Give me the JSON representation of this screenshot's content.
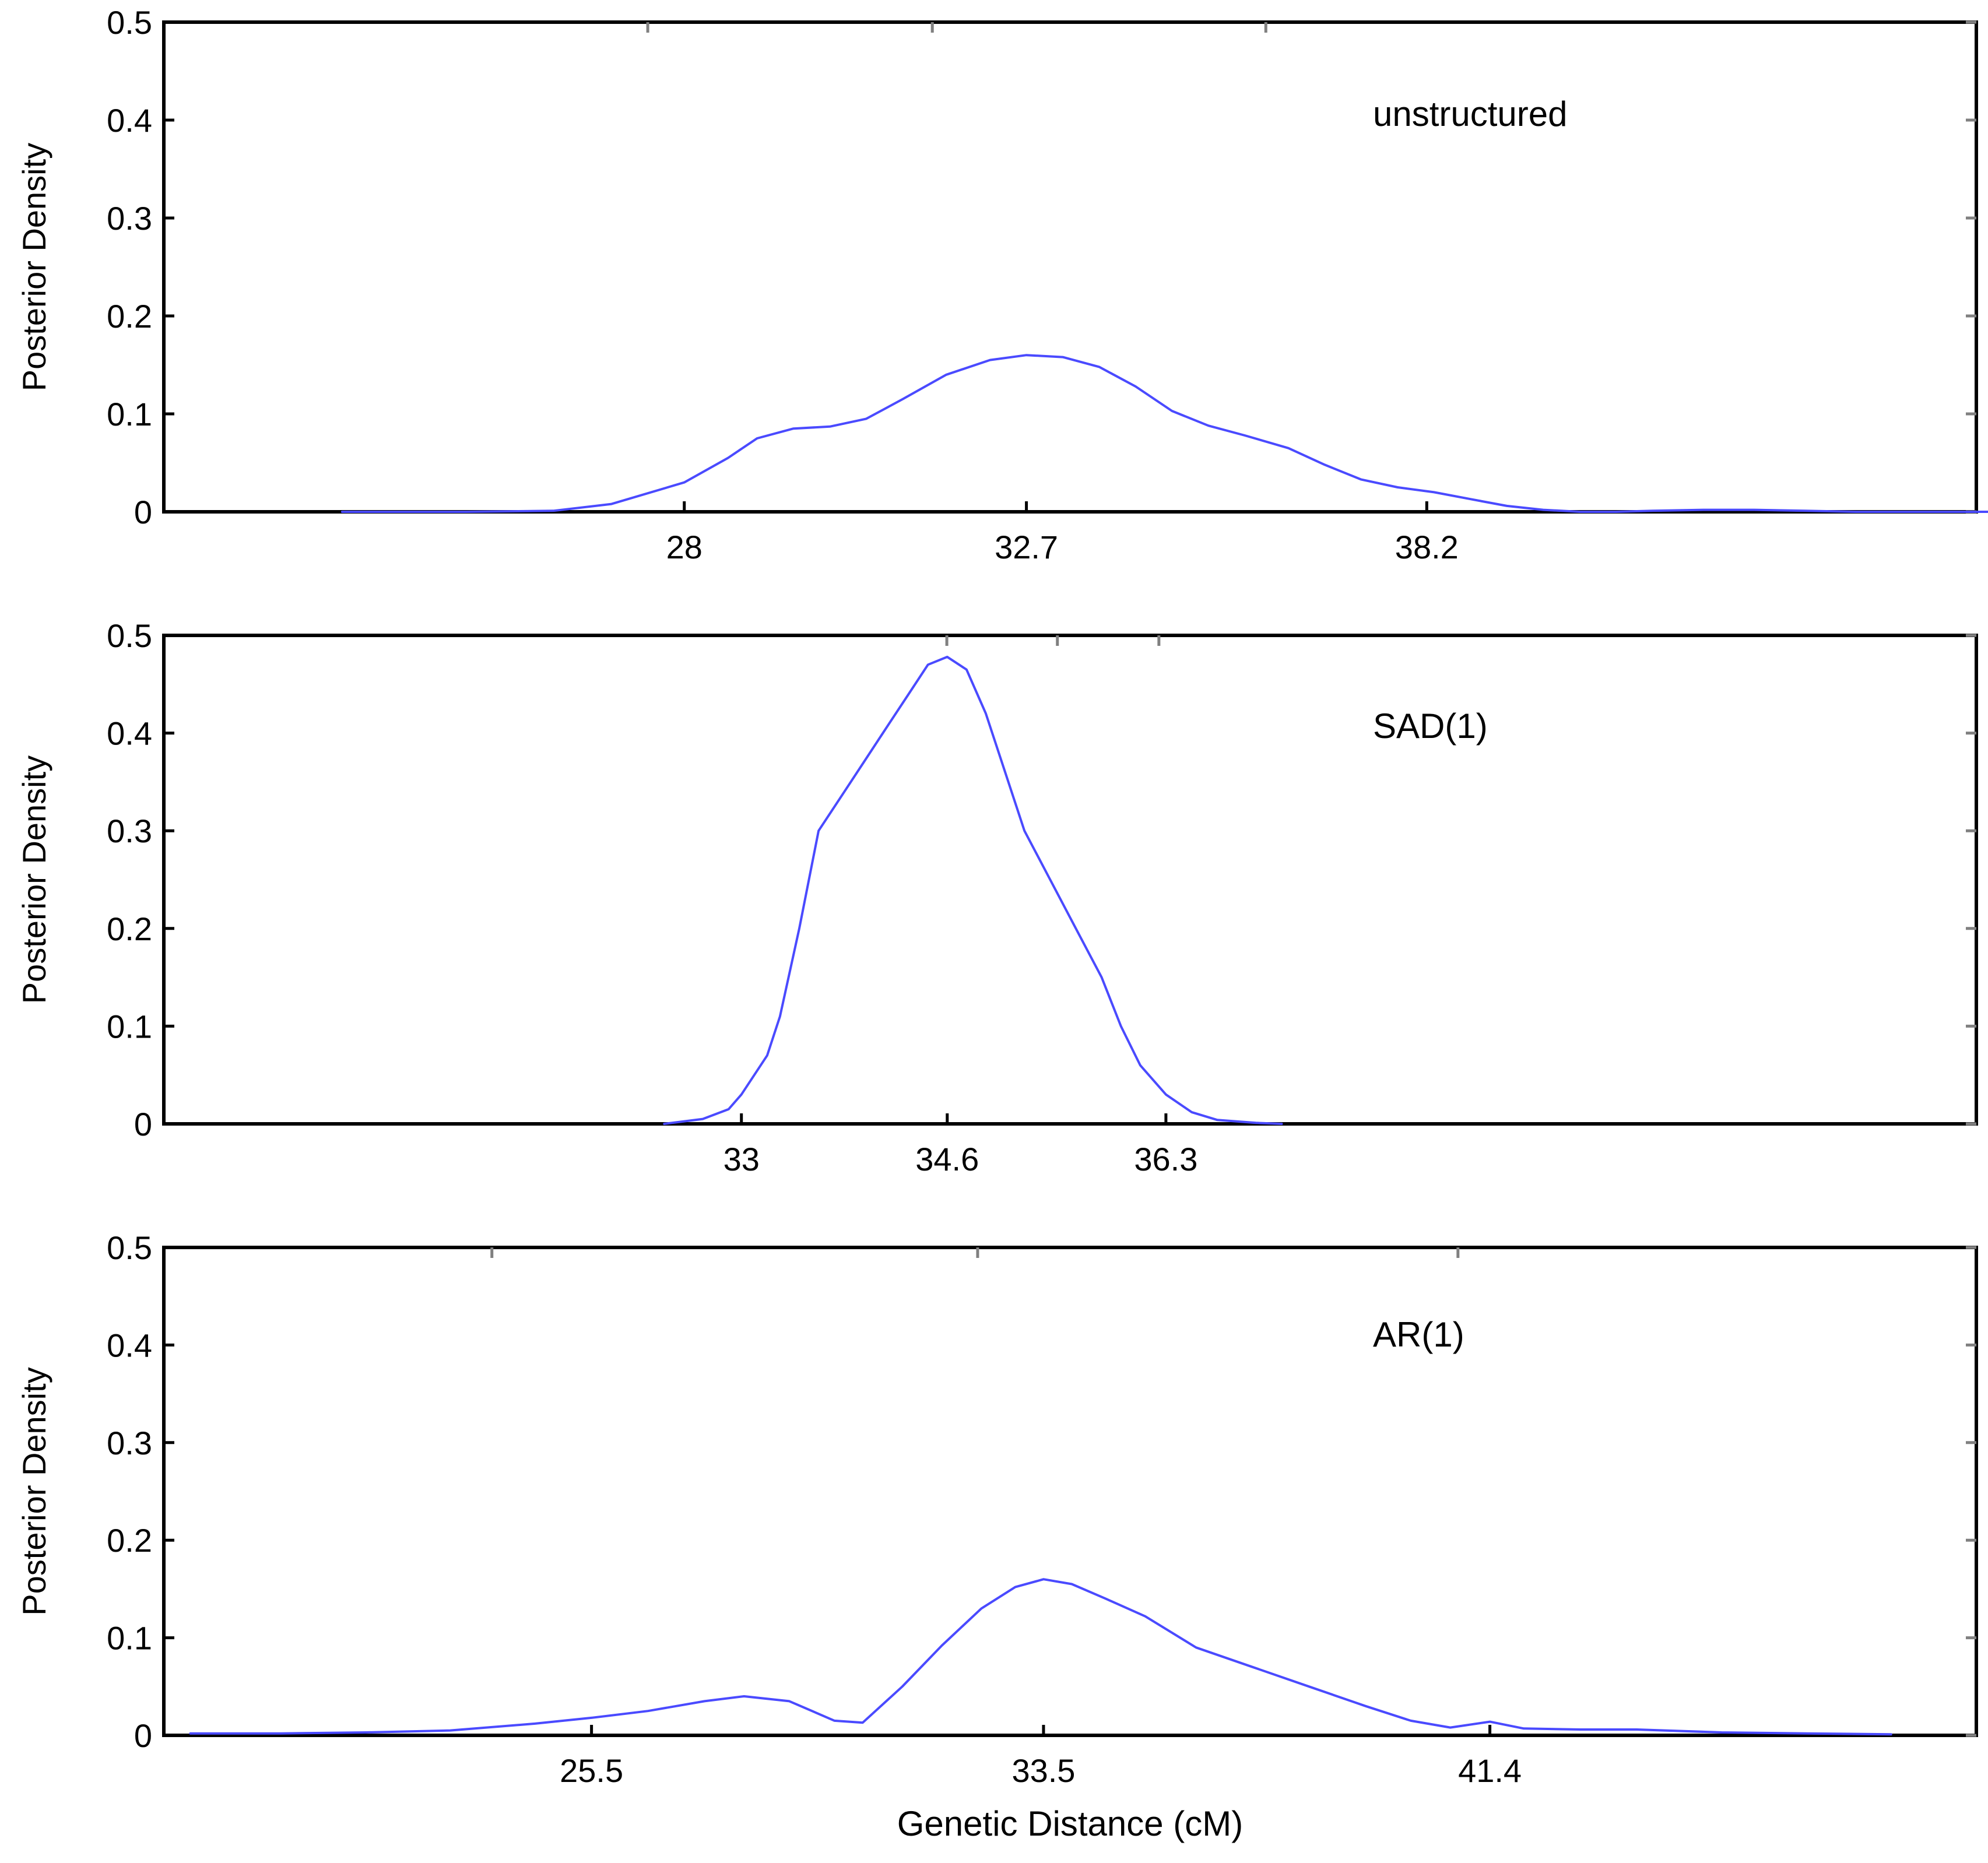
{
  "chart_data": [
    {
      "type": "line",
      "annotation": "unstructured",
      "ylabel": "Posterior Density",
      "xlabel": "",
      "ylim": [
        0,
        0.5
      ],
      "yticks": [
        "0",
        "0.1",
        "0.2",
        "0.3",
        "0.4",
        "0.5"
      ],
      "xticks": [
        {
          "label": "28",
          "value": 28
        },
        {
          "label": "32.7",
          "value": 32.7
        },
        {
          "label": "38.2",
          "value": 38.2
        }
      ],
      "line_color": "#4a4aff",
      "series": [
        {
          "x": [
            23.3,
            25.0,
            26.2,
            27.0,
            28.0,
            28.6,
            29.0,
            29.5,
            30.0,
            30.5,
            31.0,
            31.6,
            32.2,
            32.7,
            33.2,
            33.7,
            34.2,
            34.7,
            35.2,
            35.7,
            36.3,
            36.8,
            37.3,
            37.8,
            38.3,
            38.8,
            39.3,
            39.8,
            40.3,
            40.8,
            41.3,
            42.0,
            42.7,
            43.4,
            44.1,
            45.0,
            46.0
          ],
          "y": [
            0,
            0,
            0.001,
            0.008,
            0.03,
            0.055,
            0.075,
            0.085,
            0.087,
            0.095,
            0.115,
            0.14,
            0.155,
            0.16,
            0.158,
            0.148,
            0.128,
            0.103,
            0.088,
            0.078,
            0.065,
            0.048,
            0.033,
            0.025,
            0.02,
            0.013,
            0.006,
            0.002,
            0,
            0,
            0.001,
            0.002,
            0.002,
            0.001,
            0,
            0,
            0
          ]
        }
      ]
    },
    {
      "type": "line",
      "annotation": "SAD(1)",
      "ylabel": "Posterior Density",
      "xlabel": "",
      "ylim": [
        0,
        0.5
      ],
      "yticks": [
        "0",
        "0.1",
        "0.2",
        "0.3",
        "0.4",
        "0.5"
      ],
      "xticks": [
        {
          "label": "33",
          "value": 33
        },
        {
          "label": "34.6",
          "value": 34.6
        },
        {
          "label": "36.3",
          "value": 36.3
        }
      ],
      "line_color": "#4a4aff",
      "series": [
        {
          "x": [
            32.4,
            32.7,
            32.9,
            33.0,
            33.2,
            33.3,
            33.45,
            33.6,
            33.8,
            33.95,
            34.1,
            34.3,
            34.45,
            34.6,
            34.75,
            34.9,
            35.05,
            35.2,
            35.4,
            35.6,
            35.8,
            35.95,
            36.1,
            36.3,
            36.5,
            36.7,
            37.0,
            37.2
          ],
          "y": [
            0,
            0.005,
            0.015,
            0.03,
            0.07,
            0.11,
            0.2,
            0.3,
            0.34,
            0.37,
            0.4,
            0.44,
            0.47,
            0.478,
            0.465,
            0.42,
            0.36,
            0.3,
            0.25,
            0.2,
            0.15,
            0.1,
            0.06,
            0.03,
            0.012,
            0.004,
            0.001,
            0
          ]
        }
      ]
    },
    {
      "type": "line",
      "annotation": "AR(1)",
      "ylabel": "Posterior Density",
      "xlabel": "Genetic Distance (cM)",
      "ylim": [
        0,
        0.5
      ],
      "yticks": [
        "0",
        "0.1",
        "0.2",
        "0.3",
        "0.4",
        "0.5"
      ],
      "xticks": [
        {
          "label": "25.5",
          "value": 25.5
        },
        {
          "label": "33.5",
          "value": 33.5
        },
        {
          "label": "41.4",
          "value": 41.4
        }
      ],
      "line_color": "#4a4aff",
      "series": [
        {
          "x": [
            18.4,
            20.0,
            21.5,
            23.0,
            24.5,
            25.5,
            26.5,
            27.5,
            28.2,
            29.0,
            29.8,
            30.3,
            31.0,
            31.7,
            32.4,
            33.0,
            33.5,
            34.0,
            34.6,
            35.3,
            36.2,
            37.2,
            38.2,
            39.2,
            40.0,
            40.7,
            41.4,
            42.0,
            43.0,
            44.0,
            45.5,
            47.0,
            48.5
          ],
          "y": [
            0.002,
            0.002,
            0.003,
            0.005,
            0.012,
            0.018,
            0.025,
            0.035,
            0.04,
            0.035,
            0.015,
            0.013,
            0.05,
            0.092,
            0.13,
            0.152,
            0.16,
            0.155,
            0.14,
            0.122,
            0.09,
            0.07,
            0.05,
            0.03,
            0.015,
            0.008,
            0.014,
            0.007,
            0.006,
            0.006,
            0.003,
            0.002,
            0.001
          ]
        }
      ]
    }
  ]
}
